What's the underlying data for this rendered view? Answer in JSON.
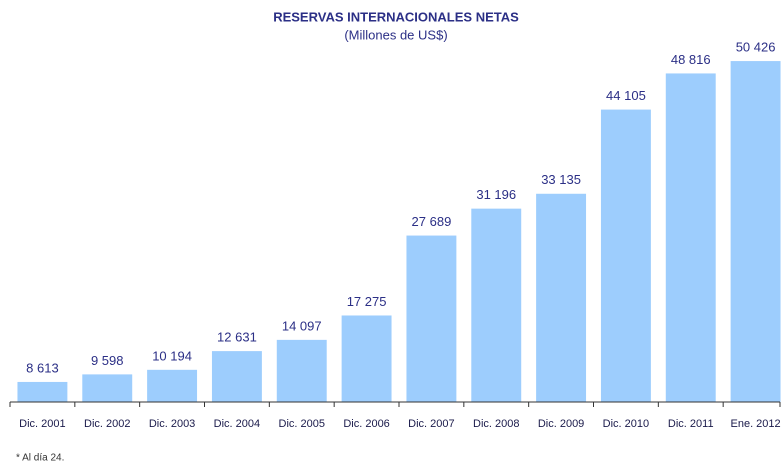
{
  "chart_data": {
    "type": "bar",
    "title": "RESERVAS INTERNACIONALES NETAS",
    "subtitle": "(Millones de US$)",
    "categories": [
      "Dic. 2001",
      "Dic. 2002",
      "Dic. 2003",
      "Dic. 2004",
      "Dic. 2005",
      "Dic. 2006",
      "Dic. 2007",
      "Dic. 2008",
      "Dic. 2009",
      "Dic. 2010",
      "Dic. 2011",
      "Ene. 2012"
    ],
    "values": [
      8613,
      9598,
      10194,
      12631,
      14097,
      17275,
      27689,
      31196,
      33135,
      44105,
      48816,
      50426
    ],
    "value_labels": [
      "8 613",
      "9 598",
      "10 194",
      "12 631",
      "14 097",
      "17 275",
      "27 689",
      "31 196",
      "33 135",
      "44 105",
      "48 816",
      "50 426"
    ],
    "color": "#9dcdfd",
    "ylim": [
      6000,
      52000
    ],
    "footnote": "* Al día 24."
  }
}
